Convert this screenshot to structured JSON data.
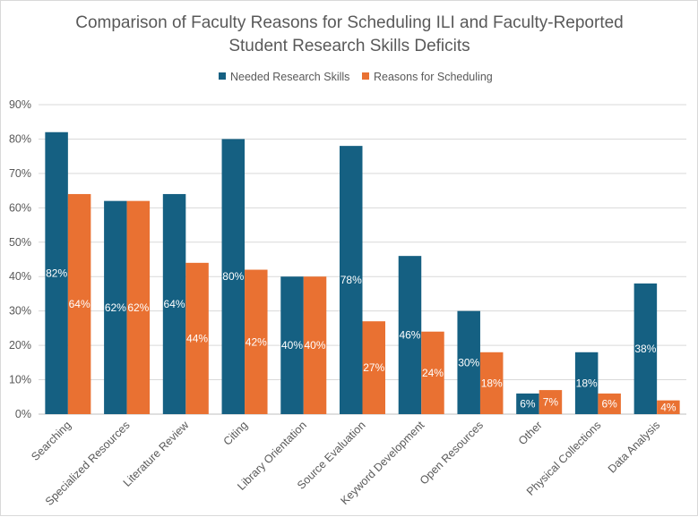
{
  "chart_data": {
    "type": "bar",
    "title_lines": [
      "Comparison of Faculty Reasons for Scheduling ILI and Faculty-Reported",
      "Student Research Skills Deficits"
    ],
    "categories": [
      "Searching",
      "Specialized Resources",
      "Literature Review",
      "Citing",
      "Library Orientation",
      "Source Evaluation",
      "Keyword Development",
      "Open Resources",
      "Other",
      "Physical Collections",
      "Data Analysis"
    ],
    "series": [
      {
        "name": "Needed Research Skills",
        "color": "#156082",
        "values": [
          82,
          62,
          64,
          80,
          40,
          78,
          46,
          30,
          6,
          18,
          38
        ],
        "labels": [
          "82%",
          "62%",
          "64%",
          "80%",
          "40%",
          "78%",
          "46%",
          "30%",
          "6%",
          "18%",
          "38%"
        ]
      },
      {
        "name": "Reasons for Scheduling",
        "color": "#E97132",
        "values": [
          64,
          62,
          44,
          42,
          40,
          27,
          24,
          18,
          7,
          6,
          4
        ],
        "labels": [
          "64%",
          "62%",
          "44%",
          "42%",
          "40%",
          "27%",
          "24%",
          "18%",
          "7%",
          "6%",
          "4%"
        ]
      }
    ],
    "ylim": [
      0,
      90
    ],
    "ytick_values": [
      0,
      10,
      20,
      30,
      40,
      50,
      60,
      70,
      80,
      90
    ],
    "ytick_labels": [
      "0%",
      "10%",
      "20%",
      "30%",
      "40%",
      "50%",
      "60%",
      "70%",
      "80%",
      "90%"
    ],
    "xlabel": "",
    "ylabel": "",
    "grid": true,
    "legend_position": "top-center"
  }
}
